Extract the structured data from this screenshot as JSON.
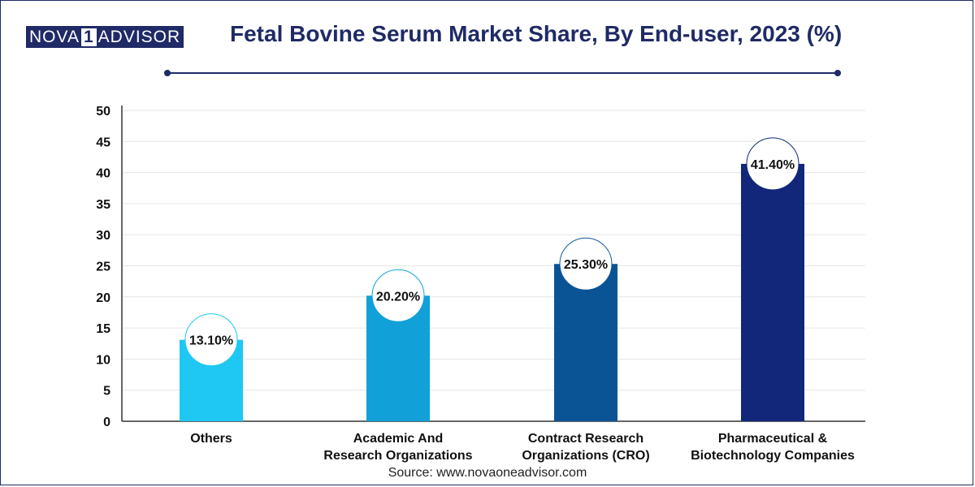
{
  "logo": {
    "left": "NOVA",
    "mark": "1",
    "right": "ADVISOR"
  },
  "title": "Fetal Bovine Serum Market Share, By End-user, 2023 (%)",
  "source": "Source: www.novaoneadvisor.com",
  "chart_data": {
    "type": "bar",
    "categories": [
      [
        "Others"
      ],
      [
        "Academic And",
        "Research Organizations"
      ],
      [
        "Contract Research",
        "Organizations (CRO)"
      ],
      [
        "Pharmaceutical &",
        "Biotechnology Companies"
      ]
    ],
    "values": [
      13.1,
      20.2,
      25.3,
      41.4
    ],
    "value_labels": [
      "13.10%",
      "20.20%",
      "25.30%",
      "41.40%"
    ],
    "colors": [
      "#1ec8f2",
      "#11a1d8",
      "#0a5495",
      "#12277a"
    ],
    "ylim": [
      0,
      50
    ],
    "yticks": [
      0,
      5,
      10,
      15,
      20,
      25,
      30,
      35,
      40,
      45,
      50
    ],
    "grid": true,
    "xlabel": "",
    "ylabel": ""
  }
}
